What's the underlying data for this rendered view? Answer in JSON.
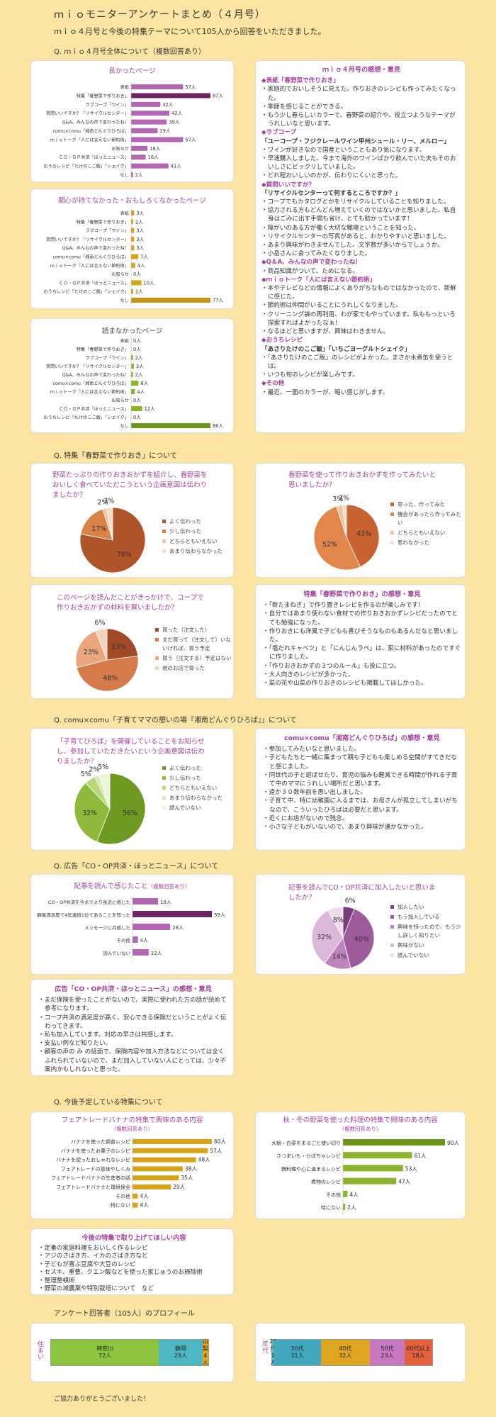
{
  "header": {
    "title": "ｍｉｏモニターアンケートまとめ（４月号）",
    "subtitle": "ｍｉｏ４月号と今後の特集テーマについて105人から回答をいただきました。"
  },
  "sections": {
    "s1": "Q. ｍｉｏ４月号全体について（複数回答あり）",
    "s2": "Q. 特集「春野菜で作りおき」について",
    "s3": "Q. comu×comu「子育てママの憩いの場『湘南どんぐりひろば』」について",
    "s4": "Q. 広告「CO・OP共済・ほっとニュース」について",
    "s5": "Q. 今後予定している特集について",
    "s6": "アンケート回答者（105人）のプロフィール"
  },
  "chart_data": [
    {
      "id": "good",
      "type": "bar",
      "title": "良かったページ",
      "unit": "人",
      "categories": [
        "表紙",
        "特集「春野菜で作りおき」",
        "ラブコープ「ワイン」",
        "質問いいですか？「リサイクルセンター」",
        "Q&A、みんなの声で変わったね！",
        "comu×comu「湘南どんぐりひろば」",
        "ｍｉｏトーク「人には言えない節約術」",
        "お知らせ",
        "ＣＯ・ＯＰ共済「ほっとニュース」",
        "おうちレシピ「たけのこご飯」「シェイク」",
        "なし"
      ],
      "values": [
        57,
        87,
        32,
        42,
        39,
        29,
        57,
        18,
        16,
        41,
        2
      ],
      "max_value": 87
    },
    {
      "id": "notinteresting",
      "type": "bar",
      "title": "関心が持てなかった・おもしろくなかったページ",
      "unit": "人",
      "categories": [
        "表紙",
        "特集「春野菜で作りおき」",
        "ラブコープ「ワイン」",
        "質問いいですか？「リサイクルセンター」",
        "Q&A、みんなの声で変わったね！",
        "comu×comu「湘南どんぐりひろば」",
        "ｍｉｏトーク「人には言えない節約術」",
        "お知らせ",
        "ＣＯ・ＯＰ共済「ほっとニュース」",
        "おうちレシピ「たけのこご飯」「シェイク」",
        "なし"
      ],
      "values": [
        3,
        2,
        3,
        3,
        3,
        7,
        4,
        0,
        10,
        2,
        77
      ],
      "max_value": 77
    },
    {
      "id": "notread",
      "type": "bar",
      "title": "読まなかったページ",
      "unit": "人",
      "categories": [
        "表紙",
        "特集「春野菜で作りおき」",
        "ラブコープ「ワイン」",
        "質問いいですか？「リサイクルセンター」",
        "Q&A、みんなの声で変わったね！",
        "comu×comu「湘南どんぐりひろば」",
        "ｍｉｏトーク「人には言えない節約術」",
        "お知らせ",
        "ＣＯ・ＯＰ共済「ほっとニュース」",
        "おうちレシピ「たけのこご飯」「シェイク」",
        "なし"
      ],
      "values": [
        0,
        0,
        2,
        3,
        2,
        8,
        4,
        0,
        12,
        0,
        86
      ],
      "max_value": 86
    },
    {
      "id": "pie_tokushu1",
      "type": "pie",
      "title": "野菜たっぷりの作りおきおかずを紹介し、春野菜をおいしく食べていただこうという企画意図は伝わりましたか？",
      "labels": [
        "よく伝わった",
        "少し伝わった",
        "どちらともいえない",
        "あまり伝わらなかった"
      ],
      "values": [
        78,
        17,
        2,
        3
      ],
      "colors": [
        "#b0542a",
        "#d88446",
        "#f2c4a3",
        "#f4dccb"
      ]
    },
    {
      "id": "pie_tokushu2",
      "type": "pie",
      "title": "春野菜を使って作りおきおかずを作ってみたいと思いましたか？",
      "labels": [
        "思った、作ってみた",
        "機会があったら作ってみたい",
        "どちらともいえない",
        "思わなかった"
      ],
      "values": [
        43,
        52,
        3,
        2
      ],
      "colors": [
        "#c8622e",
        "#e3864c",
        "#f3c49c",
        "#f7ddc7"
      ]
    },
    {
      "id": "pie_tokushu3",
      "type": "pie",
      "title": "このページを読んだことがきっかけで、コープで作りおきおかずの材料を買いましたか？",
      "labels": [
        "買った（注文した）",
        "まだ買って（注文して）いないければ、買う予定",
        "買う（注文する）予定はない",
        "他のお店で買った"
      ],
      "values": [
        23,
        48,
        23,
        6
      ],
      "colors": [
        "#a24a28",
        "#d57a48",
        "#eba67e",
        "#f4d3bc"
      ]
    },
    {
      "id": "pie_comu",
      "type": "pie",
      "title": "「子育てひろば」を開催していることをお知らせし、参加していただきたいという企画意図は伝わりましたか？",
      "labels": [
        "よく伝わった",
        "少し伝わった",
        "どちらともいえない",
        "あまり伝わらなかった",
        "読んでいない"
      ],
      "values": [
        56,
        32,
        5,
        2,
        5
      ],
      "colors": [
        "#6e9a22",
        "#8eb93a",
        "#b8d67c",
        "#d8e8b4",
        "#edf4dc"
      ]
    },
    {
      "id": "ad_bar",
      "type": "bar",
      "title": "記事を読んで感じたこと",
      "title_note": "（複数回答あり）",
      "unit": "人",
      "categories": [
        "CO・OP共済を今までより身近に感じた",
        "顧客満足度で4年連続1位であることを知った",
        "メッセージに共感した",
        "その他",
        "読んでいない"
      ],
      "values": [
        19,
        59,
        28,
        4,
        12
      ],
      "max_value": 59
    },
    {
      "id": "pie_ad",
      "type": "pie",
      "title": "記事を読んでCO・OP共済に加入したいと思いましたか？",
      "labels": [
        "加入したい",
        "もう加入している",
        "興味を持ったので、もう少し詳しく知りたい",
        "興味がない",
        "読んでいない"
      ],
      "values": [
        6,
        40,
        14,
        32,
        8
      ],
      "colors": [
        "#7a3c7a",
        "#9d5b9c",
        "#bd85bc",
        "#dbb7da",
        "#eedbee"
      ]
    },
    {
      "id": "future1",
      "type": "bar",
      "title": "フェアトレードバナナの特集で興味のある内容",
      "title_note": "（複数回答あり）",
      "unit": "人",
      "categories": [
        "バナナを使った朝食レシピ",
        "バナナを使ったお菓子のレシピ",
        "バナナを使ったおしゃれなレシピ",
        "フェアトレードの意味やしくみ",
        "フェアトレードバナナの生産者の話",
        "フェアトレードバナナと環境保全",
        "その他",
        "特にない"
      ],
      "values": [
        60,
        57,
        48,
        38,
        35,
        29,
        4,
        4
      ],
      "max_value": 60
    },
    {
      "id": "future2",
      "type": "bar",
      "title": "秋・冬の野菜を使った料理の特集で興味のある内容",
      "title_note": "（複数回答あり）",
      "unit": "人",
      "categories": [
        "大根・白菜をまるごと使い切り",
        "さつまいも・かぼちゃレシピ",
        "鍋料理や心に温まるレシピ",
        "煮物のレシピ",
        "その他",
        "特にない"
      ],
      "values": [
        90,
        61,
        53,
        47,
        4,
        2
      ],
      "max_value": 90
    }
  ],
  "comments": {
    "overall": {
      "title": "ｍｉｏ４月号の感想・意見",
      "groups": [
        {
          "topic": "◆表紙「春野菜で作りおき」",
          "sub": "",
          "items": [
            "家庭的でおいしそうに見えた。作りおきのレシピも作ってみたくなった。",
            "季節を感じることができる。",
            "もう少し春らしいカラーで、春野菜の紹介や、役立つようなテーマがうれしいなと思います。"
          ]
        },
        {
          "topic": "◆ラブコープ",
          "sub": "「ユーコープ・フジクレールワイン甲州シュール・リー、メルロー」",
          "items": [
            "ワインが好きなので国産ということもあり気になります。",
            "早速購入しました。今まで海外のワインばかり飲んでいた夫もそのおいしさにビックリしていました。",
            "どれ程おいしいのかが、伝わりにくいと思った。"
          ]
        },
        {
          "topic": "◆質問いいですか？",
          "sub": "「リサイクルセンターって何するところですか？」",
          "items": [
            "コープでもカタログとかをリサイクルしていることを知りました。",
            "協力される方もどんどん増えていくのではないかと思いました。私自身はごみに出す手間も省け、とても助かっています！",
            "障がいのある方が働く大切な職場ということを知った。",
            "リサイクルセンターの写真があると、わかりやすいと思いました。",
            "あまり興味がわきませんでした。文字数が多いからでしょうか。",
            "小岳さんに会ってみたくなりました。"
          ]
        },
        {
          "topic": "◆Q＆A、みんなの声で変わったね！",
          "sub": "",
          "items": [
            "商品知識がついて、ためになる。"
          ]
        },
        {
          "topic": "◆ｍｉｏトーク「人には言えない節約術」",
          "sub": "",
          "items": [
            "本やテレビなどの情報によくありがちなものではなかったので、新鮮に感じた。",
            "節約術は仲間がいることにうれしくなりました。",
            "クリーニング袋の再利用、わが家でもやっています。私ももっといろ探索すればよかったなぁ！",
            "なるほどと思いますが、興味はわきません。"
          ]
        },
        {
          "topic": "◆おうちレシピ",
          "sub": "「あさりたけのこご飯」「いちごヨーグルトシェイク」",
          "items": [
            "「あさりたけのこご飯」のレシピがよかった。まさか水煮缶を使うとは。",
            "いつも旬のレシピが楽しみです。"
          ]
        },
        {
          "topic": "◆その他",
          "sub": "",
          "items": [
            "最近、一面のカラーが、暗い感じがします。"
          ]
        }
      ]
    },
    "tokushu": {
      "title": "特集「春野菜で作りおき」の感想・意見",
      "items": [
        "「新たまねぎ」で作り置きレシピを作るのが楽しみです！",
        "自分ではあまり使わない食材での作りおきおかずレシピだったのでとても勉強になった。",
        "作りおきにも洋風で子どもも喜びそうなものもあるんだなと思いました。",
        "「塩だれキャベツ」と「にんじんラペ」は、家に材料があったのですぐに作りました。",
        "「作りおきおかずの３つのルール」も役に立つ。",
        "大人向きのレシピが多かった。",
        "菜の花や山菜の作りおきのレシピも掲載してほしかった。"
      ]
    },
    "comu": {
      "title": "comu×comu「湘南どんぐりひろば」の感想・意見",
      "items": [
        "参加してみたいなと思いました。",
        "子どもたちと一緒に集まって親も子どもも楽しめる空間がすてきだなと感じました。",
        "同世代の子と遊ばせたり、育児の悩みも軽減できる時間が作れる子育て中のママにうれしい場所だと思います。",
        "遠か３０数年前を思い出しました。",
        "子育て中、特に幼稚園に入るまでは、お母さんが孤立してしまいがちなので、こういったひろばは必要だと思います。",
        "近くにお店がないので残念。",
        "小さな子どもがいないので、あまり興味が湧かなかった。"
      ]
    },
    "ad": {
      "title": "広告「CO・OP共済・ほっとニュース」の感想・意見",
      "items": [
        "まだ保険を使ったことがないので、実際に使われた方の話が読めて参考になります。",
        "コープ共済の満足度が高く、安心できる保険だということがよく伝わってきます。",
        "私も加入しています。対応の早さは共感します。",
        "支払い例など知りたい。",
        "顧客の声の み の話面で、保険内容や加入方法などについては全くふれられていないので、まだ加入していない人にとっては、少々不案内かもしれないと思った。"
      ]
    },
    "future": {
      "title": "今後の特集で取り上げてほしい内容",
      "items": [
        "定番の家庭料理をおいしく作るレシピ",
        "アジのさばき方、イカのさばき方など",
        "子どもが喜ぶ豆腐や大豆のレシピ",
        "セスキ、重曹、クエン酸などを使った家じゅうのお掃除術",
        "整理整頓術",
        "野菜の減農薬や特別栽培について　など"
      ]
    }
  },
  "profile": {
    "residence_label": "住まい",
    "residence": [
      {
        "name": "神奈川",
        "count": "72人",
        "value": 72,
        "color": "#8cc63e"
      },
      {
        "name": "静岡",
        "count": "29人",
        "value": 29,
        "color": "#4db8c4"
      },
      {
        "name": "山梨",
        "count": "4人",
        "value": 4,
        "color": "#e2a71b"
      }
    ],
    "age_label": "年代",
    "age": [
      {
        "name": "20代",
        "count": "1人",
        "value": 1,
        "color": "#5bbcc5"
      },
      {
        "name": "30代",
        "count": "31人",
        "value": 31,
        "color": "#41a8be"
      },
      {
        "name": "40代",
        "count": "32人",
        "value": 32,
        "color": "#e0a520"
      },
      {
        "name": "50代",
        "count": "23人",
        "value": 23,
        "color": "#c778c0"
      },
      {
        "name": "60代以上",
        "count": "18人",
        "value": 18,
        "color": "#e2613a"
      }
    ]
  },
  "footer": "ご協力ありがとうございました！",
  "colors": {
    "bar_good": "#b466b2",
    "bar_good_max": "#6d2460",
    "bar_gold": "#d8a417",
    "bar_gold_max": "#c79414",
    "bar_green": "#8ab42a",
    "bar_green_max": "#6b9418"
  }
}
